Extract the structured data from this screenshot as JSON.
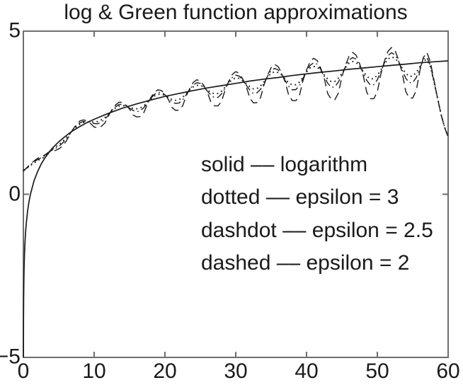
{
  "chart_data": {
    "type": "line",
    "title": "log & Green function approximations",
    "xlabel": "",
    "ylabel": "",
    "xlim": [
      0,
      60
    ],
    "ylim": [
      -5,
      5
    ],
    "xticks": [
      0,
      10,
      20,
      30,
      40,
      50,
      60
    ],
    "xtick_labels": [
      "0",
      "10",
      "20",
      "30",
      "40",
      "50",
      "60"
    ],
    "yticks": [
      5,
      0,
      -5
    ],
    "ytick_labels": [
      "5",
      "0",
      "−5"
    ],
    "grid": false,
    "legend_position": "inside-center",
    "axis_color": "#6e6e6e",
    "line_color": "#1b1b1b",
    "annotations": [
      "solid –– logarithm",
      "dotted –– epsilon = 3",
      "dashdot –– epsilon = 2.5",
      "dashed –– epsilon = 2"
    ],
    "series": [
      {
        "name": "logarithm",
        "style": "solid",
        "points": [
          [
            0.007,
            -5.0
          ],
          [
            0.02,
            -3.91
          ],
          [
            0.04,
            -3.22
          ],
          [
            0.07,
            -2.66
          ],
          [
            0.1,
            -2.3
          ],
          [
            0.15,
            -1.9
          ],
          [
            0.2,
            -1.61
          ],
          [
            0.3,
            -1.2
          ],
          [
            0.4,
            -0.92
          ],
          [
            0.6,
            -0.51
          ],
          [
            0.8,
            -0.22
          ],
          [
            1,
            0
          ],
          [
            1.5,
            0.41
          ],
          [
            2,
            0.69
          ],
          [
            2.5,
            0.92
          ],
          [
            3,
            1.1
          ],
          [
            4,
            1.39
          ],
          [
            5,
            1.61
          ],
          [
            6,
            1.79
          ],
          [
            7,
            1.95
          ],
          [
            8,
            2.08
          ],
          [
            9,
            2.2
          ],
          [
            10,
            2.3
          ],
          [
            12,
            2.48
          ],
          [
            14,
            2.64
          ],
          [
            16,
            2.77
          ],
          [
            18,
            2.89
          ],
          [
            20,
            3.0
          ],
          [
            22,
            3.09
          ],
          [
            24,
            3.18
          ],
          [
            26,
            3.26
          ],
          [
            28,
            3.33
          ],
          [
            30,
            3.4
          ],
          [
            32,
            3.47
          ],
          [
            34,
            3.53
          ],
          [
            36,
            3.58
          ],
          [
            38,
            3.64
          ],
          [
            40,
            3.69
          ],
          [
            42,
            3.74
          ],
          [
            44,
            3.78
          ],
          [
            46,
            3.83
          ],
          [
            48,
            3.87
          ],
          [
            50,
            3.91
          ],
          [
            52,
            3.95
          ],
          [
            54,
            3.99
          ],
          [
            56,
            4.03
          ],
          [
            58,
            4.06
          ],
          [
            60,
            4.09
          ]
        ]
      },
      {
        "name": "epsilon = 3",
        "style": "dotted",
        "x_start": 0,
        "x_step": 0.5,
        "y": [
          0.74,
          0.8,
          0.88,
          0.96,
          1.03,
          1.09,
          1.14,
          1.27,
          1.37,
          1.44,
          1.52,
          1.61,
          1.72,
          1.84,
          1.97,
          2.07,
          2.15,
          2.2,
          2.22,
          2.22,
          2.21,
          2.23,
          2.28,
          2.35,
          2.44,
          2.56,
          2.64,
          2.7,
          2.72,
          2.7,
          2.67,
          2.63,
          2.62,
          2.64,
          2.71,
          2.81,
          2.92,
          3.01,
          3.06,
          3.07,
          3.03,
          2.97,
          2.9,
          2.88,
          2.9,
          2.97,
          3.08,
          3.2,
          3.29,
          3.34,
          3.34,
          3.28,
          3.2,
          3.12,
          3.08,
          3.09,
          3.16,
          3.28,
          3.41,
          3.51,
          3.57,
          3.55,
          3.48,
          3.38,
          3.29,
          3.23,
          3.24,
          3.32,
          3.45,
          3.59,
          3.71,
          3.76,
          3.73,
          3.65,
          3.53,
          3.41,
          3.35,
          3.36,
          3.44,
          3.59,
          3.75,
          3.87,
          3.92,
          3.9,
          3.8,
          3.66,
          3.53,
          3.45,
          3.46,
          3.56,
          3.71,
          3.88,
          4.02,
          4.07,
          4.04,
          3.92,
          3.77,
          3.62,
          3.54,
          3.54,
          3.65,
          3.81,
          4.0,
          4.14,
          4.21,
          4.17,
          4.04,
          3.87,
          3.71,
          3.61,
          3.62,
          3.73,
          3.91,
          4.1,
          4.12,
          3.9,
          3.45,
          2.95,
          2.45,
          2.05,
          1.78
        ]
      },
      {
        "name": "epsilon = 2.5",
        "style": "dashdot",
        "x_start": 0,
        "x_step": 0.5,
        "y": [
          0.72,
          0.81,
          0.9,
          0.99,
          1.06,
          1.12,
          1.17,
          1.27,
          1.35,
          1.4,
          1.47,
          1.56,
          1.68,
          1.83,
          1.98,
          2.1,
          2.19,
          2.23,
          2.23,
          2.2,
          2.17,
          2.16,
          2.21,
          2.3,
          2.42,
          2.57,
          2.68,
          2.75,
          2.76,
          2.71,
          2.64,
          2.57,
          2.53,
          2.56,
          2.65,
          2.79,
          2.94,
          3.06,
          3.12,
          3.12,
          3.05,
          2.94,
          2.83,
          2.78,
          2.8,
          2.89,
          3.05,
          3.22,
          3.35,
          3.42,
          3.4,
          3.3,
          3.16,
          3.04,
          2.96,
          2.97,
          3.08,
          3.25,
          3.44,
          3.58,
          3.65,
          3.62,
          3.5,
          3.34,
          3.19,
          3.09,
          3.11,
          3.22,
          3.41,
          3.62,
          3.79,
          3.86,
          3.81,
          3.68,
          3.48,
          3.3,
          3.2,
          3.21,
          3.33,
          3.55,
          3.77,
          3.95,
          4.03,
          3.99,
          3.83,
          3.61,
          3.4,
          3.28,
          3.29,
          3.44,
          3.66,
          3.91,
          4.11,
          4.19,
          4.14,
          3.96,
          3.72,
          3.49,
          3.35,
          3.36,
          3.51,
          3.76,
          4.03,
          4.25,
          4.34,
          4.27,
          4.08,
          3.81,
          3.56,
          3.42,
          3.42,
          3.58,
          3.85,
          4.14,
          4.2,
          3.95,
          3.45,
          2.95,
          2.45,
          2.05,
          1.75
        ]
      },
      {
        "name": "epsilon = 2",
        "style": "dashed",
        "x_start": 0,
        "x_step": 0.5,
        "y": [
          0.7,
          0.82,
          0.92,
          1.02,
          1.1,
          1.16,
          1.2,
          1.28,
          1.33,
          1.34,
          1.39,
          1.47,
          1.61,
          1.8,
          1.99,
          2.14,
          2.25,
          2.28,
          2.25,
          2.17,
          2.06,
          2.04,
          2.08,
          2.18,
          2.39,
          2.59,
          2.73,
          2.82,
          2.82,
          2.73,
          2.61,
          2.43,
          2.37,
          2.38,
          2.5,
          2.75,
          2.96,
          3.13,
          3.2,
          3.18,
          3.07,
          2.9,
          2.66,
          2.57,
          2.58,
          2.71,
          3.01,
          3.24,
          3.43,
          3.51,
          3.47,
          3.33,
          3.12,
          2.82,
          2.71,
          2.71,
          2.85,
          3.2,
          3.46,
          3.67,
          3.76,
          3.71,
          3.53,
          3.29,
          2.94,
          2.8,
          2.81,
          2.96,
          3.36,
          3.65,
          3.88,
          3.98,
          3.91,
          3.71,
          3.43,
          3.02,
          2.87,
          2.87,
          3.03,
          3.49,
          3.81,
          4.06,
          4.17,
          4.1,
          3.87,
          3.55,
          3.08,
          2.91,
          2.9,
          3.1,
          3.6,
          3.95,
          4.23,
          4.35,
          4.26,
          4.0,
          3.65,
          3.13,
          2.93,
          2.93,
          3.14,
          3.69,
          4.08,
          4.38,
          4.5,
          4.41,
          4.12,
          3.74,
          3.16,
          2.95,
          2.95,
          3.18,
          3.78,
          4.19,
          4.35,
          4.05,
          3.5,
          2.95,
          2.45,
          2.05,
          1.75
        ]
      }
    ]
  }
}
